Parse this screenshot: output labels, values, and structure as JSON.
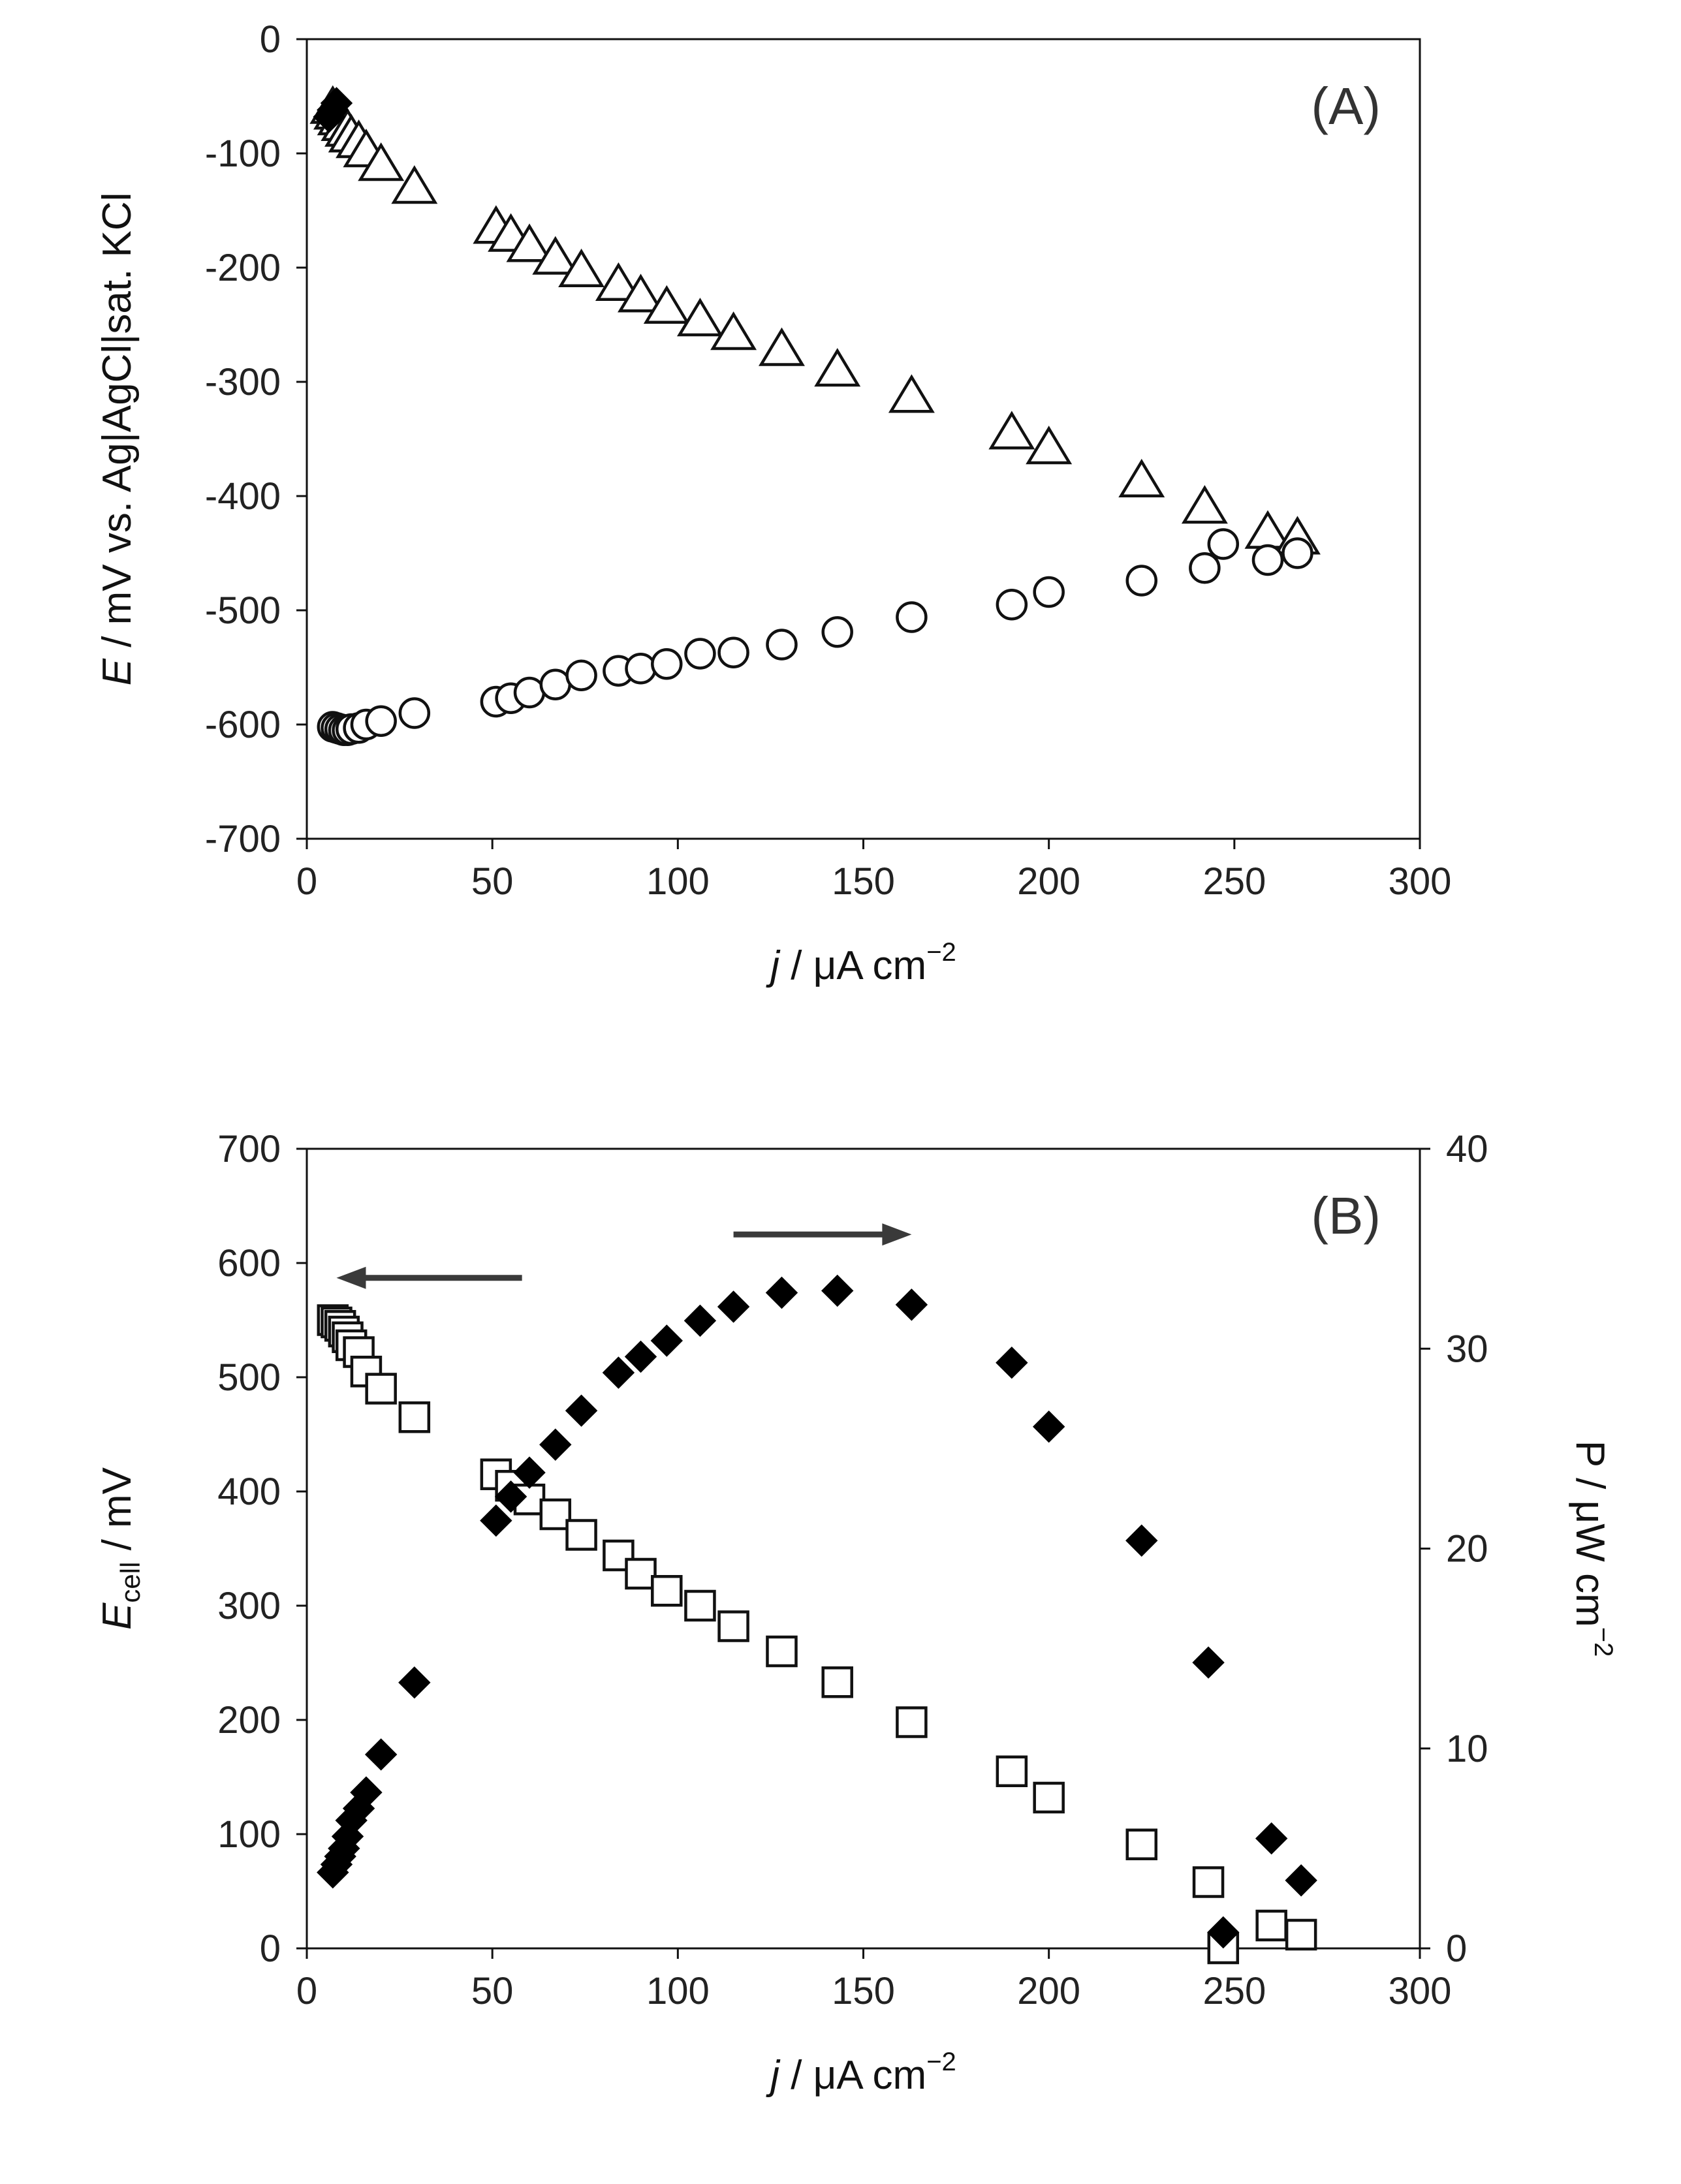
{
  "chart_data": [
    {
      "id": "A",
      "type": "scatter",
      "panel_label": "(A)",
      "xlabel": {
        "italic": "j",
        "rest": " / μA cm",
        "sup": "−2"
      },
      "ylabel": {
        "italic": "E",
        "rest": " /  mV vs. Ag|AgCl|sat. KCl"
      },
      "xlim": [
        0,
        300
      ],
      "ylim": [
        -700,
        0
      ],
      "xticks": [
        "0",
        "50",
        "100",
        "150",
        "200",
        "250",
        "300"
      ],
      "yticks": [
        "0",
        "-100",
        "-200",
        "-300",
        "-400",
        "-500",
        "-600",
        "-700"
      ],
      "grid": false,
      "series": [
        {
          "name": "triangles",
          "marker": "open-triangle",
          "x": [
            7,
            8,
            9,
            10,
            11,
            12,
            14,
            16,
            20,
            29,
            51,
            55,
            60,
            67,
            74,
            84,
            90,
            97,
            106,
            115,
            128,
            143,
            163,
            190,
            200,
            225,
            242,
            259,
            267
          ],
          "y": [
            -60,
            -65,
            -70,
            -75,
            -80,
            -85,
            -90,
            -98,
            -110,
            -130,
            -165,
            -172,
            -181,
            -192,
            -203,
            -215,
            -225,
            -235,
            -246,
            -258,
            -272,
            -290,
            -313,
            -345,
            -358,
            -387,
            -410,
            -432,
            -437
          ]
        },
        {
          "name": "circles",
          "marker": "open-circle",
          "x": [
            7,
            8,
            9,
            10,
            11,
            12,
            14,
            16,
            20,
            29,
            51,
            55,
            60,
            67,
            74,
            84,
            90,
            97,
            106,
            115,
            128,
            143,
            163,
            190,
            200,
            225,
            242,
            247,
            259,
            267
          ],
          "y": [
            -602,
            -603,
            -604,
            -605,
            -605,
            -604,
            -603,
            -600,
            -597,
            -590,
            -580,
            -577,
            -572,
            -565,
            -557,
            -553,
            -551,
            -547,
            -538,
            -537,
            -530,
            -519,
            -506,
            -495,
            -484,
            -474,
            -463,
            -442,
            -456,
            -450
          ]
        },
        {
          "name": "filled diamonds",
          "marker": "filled-diamond",
          "x": [
            6,
            7,
            8
          ],
          "y": [
            -68,
            -62,
            -56
          ]
        }
      ]
    },
    {
      "id": "B",
      "type": "scatter",
      "panel_label": "(B)",
      "xlabel": {
        "italic": "j",
        "rest": " / μA cm",
        "sup": "−2"
      },
      "ylabel": {
        "main": "E",
        "sub": "cell",
        "rest": "  /  mV"
      },
      "y2label": {
        "text": "P / μW cm",
        "sup": "−2"
      },
      "xlim": [
        0,
        300
      ],
      "ylim": [
        0,
        700
      ],
      "y2lim": [
        0,
        40
      ],
      "xticks": [
        "0",
        "50",
        "100",
        "150",
        "200",
        "250",
        "300"
      ],
      "yticks": [
        "0",
        "100",
        "200",
        "300",
        "400",
        "500",
        "600",
        "700"
      ],
      "y2ticks": [
        "0",
        "10",
        "20",
        "30",
        "40"
      ],
      "grid": false,
      "annotations": [
        {
          "type": "arrow",
          "direction": "left",
          "points_to": "left axis",
          "x": [
            58,
            8
          ],
          "y": 587
        },
        {
          "type": "arrow",
          "direction": "right",
          "points_to": "right axis",
          "x": [
            115,
            163
          ],
          "y": 625
        }
      ],
      "series": [
        {
          "name": "E_cell",
          "axis": "left",
          "marker": "open-square",
          "x": [
            7,
            8,
            9,
            10,
            11,
            12,
            14,
            16,
            20,
            29,
            51,
            55,
            60,
            67,
            74,
            84,
            90,
            97,
            106,
            115,
            128,
            143,
            163,
            190,
            200,
            225,
            243,
            247,
            260,
            268
          ],
          "y": [
            550,
            548,
            545,
            540,
            535,
            528,
            522,
            505,
            490,
            465,
            415,
            405,
            393,
            380,
            362,
            344,
            328,
            313,
            300,
            282,
            260,
            233,
            198,
            155,
            132,
            91,
            58,
            0,
            20,
            12
          ]
        },
        {
          "name": "P",
          "axis": "right",
          "marker": "filled-diamond",
          "x": [
            7,
            8,
            9,
            10,
            11,
            12,
            14,
            16,
            20,
            29,
            51,
            55,
            60,
            67,
            74,
            84,
            90,
            97,
            106,
            115,
            128,
            143,
            163,
            190,
            200,
            225,
            243,
            247,
            260,
            268
          ],
          "y": [
            3.8,
            4.2,
            4.6,
            5.0,
            5.6,
            6.4,
            7.0,
            7.8,
            9.7,
            13.3,
            21.4,
            22.6,
            23.8,
            25.2,
            26.9,
            28.8,
            29.6,
            30.4,
            31.4,
            32.1,
            32.8,
            32.9,
            32.2,
            29.3,
            26.1,
            20.4,
            14.3,
            0.8,
            5.5,
            3.4
          ]
        }
      ]
    }
  ]
}
